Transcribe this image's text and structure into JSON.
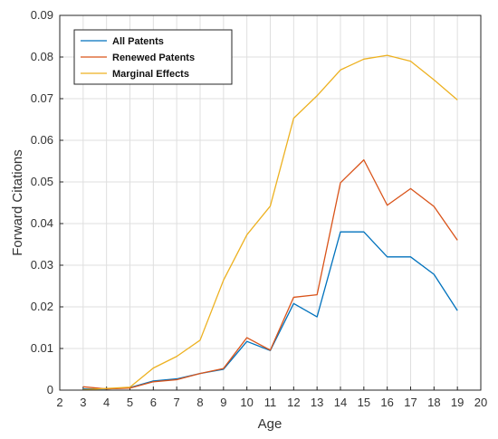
{
  "chart_data": {
    "type": "line",
    "title": "",
    "xlabel": "Age",
    "ylabel": "Forward Citations",
    "xlim": [
      2,
      20
    ],
    "ylim": [
      0,
      0.09
    ],
    "xticks": [
      "2",
      "3",
      "4",
      "5",
      "6",
      "7",
      "8",
      "9",
      "10",
      "11",
      "12",
      "13",
      "14",
      "15",
      "16",
      "17",
      "18",
      "19",
      "20"
    ],
    "yticks": [
      "0",
      "0.01",
      "0.02",
      "0.03",
      "0.04",
      "0.05",
      "0.06",
      "0.07",
      "0.08",
      "0.09"
    ],
    "grid": true,
    "legend_position": "top-left",
    "x": [
      3,
      4,
      5,
      6,
      7,
      8,
      9,
      10,
      11,
      12,
      13,
      14,
      15,
      16,
      17,
      18,
      19
    ],
    "series": [
      {
        "name": "All Patents",
        "color": "#0072BD",
        "values": [
          0.0003,
          0.0003,
          0.0006,
          0.0022,
          0.0027,
          0.004,
          0.005,
          0.0117,
          0.0095,
          0.0208,
          0.0176,
          0.038,
          0.038,
          0.032,
          0.032,
          0.0278,
          0.0191
        ]
      },
      {
        "name": "Renewed Patents",
        "color": "#D95319",
        "values": [
          0.0008,
          0.0003,
          0.0005,
          0.002,
          0.0025,
          0.004,
          0.0052,
          0.0126,
          0.0096,
          0.0223,
          0.0229,
          0.0498,
          0.0553,
          0.0444,
          0.0484,
          0.0441,
          0.036
        ]
      },
      {
        "name": "Marginal Effects",
        "color": "#EDB120",
        "values": [
          0.0001,
          0.0004,
          0.0007,
          0.0053,
          0.0081,
          0.012,
          0.0264,
          0.0373,
          0.0442,
          0.0653,
          0.0707,
          0.0769,
          0.0795,
          0.0804,
          0.079,
          0.0745,
          0.0697
        ]
      }
    ]
  }
}
